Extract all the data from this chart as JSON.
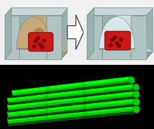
{
  "fig_width": 2.26,
  "fig_height": 1.89,
  "dpi": 100,
  "bg_color": "#f0f0f0",
  "mold_top": "#c8d8d8",
  "mold_front": "#b0c4c4",
  "mold_side": "#98b0b0",
  "mold_bottom": "#88a0a0",
  "mold_edge": "#708080",
  "inner_fill": "#c8a878",
  "inner_dark": "#a88858",
  "inner_shadow": "#906838",
  "tissue_color": "#cc1818",
  "tissue_dark": "#880808",
  "tissue_cell": "#660000",
  "arrow_fc": "#ffffff",
  "arrow_ec": "#444444",
  "green_bright": "#00ff00",
  "green_mid": "#00cc00",
  "green_dark": "#005500",
  "bottom_bg": "#000000"
}
